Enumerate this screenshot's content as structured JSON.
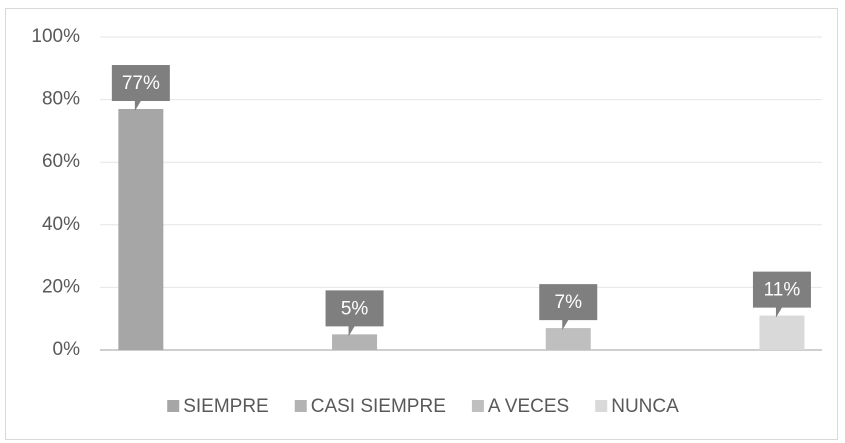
{
  "chart_data": {
    "type": "bar",
    "categories": [
      null
    ],
    "series": [
      {
        "name": "SIEMPRE",
        "color": "#a6a6a6",
        "values": [
          77
        ],
        "value_labels": [
          "77%"
        ]
      },
      {
        "name": "CASI SIEMPRE",
        "color": "#b3b3b3",
        "values": [
          5
        ],
        "value_labels": [
          "5%"
        ]
      },
      {
        "name": "A VECES",
        "color": "#bfbfbf",
        "values": [
          7
        ],
        "value_labels": [
          "7%"
        ]
      },
      {
        "name": "NUNCA",
        "color": "#d9d9d9",
        "values": [
          11
        ],
        "value_labels": [
          "11%"
        ]
      }
    ],
    "ylim": [
      0,
      100
    ],
    "yticks": [
      {
        "value": 0,
        "label": "0%"
      },
      {
        "value": 20,
        "label": "20%"
      },
      {
        "value": 40,
        "label": "40%"
      },
      {
        "value": 60,
        "label": "60%"
      },
      {
        "value": 80,
        "label": "80%"
      },
      {
        "value": 100,
        "label": "100%"
      }
    ],
    "grid": true,
    "label_color": "#7f7f7f",
    "legend": "bottom"
  }
}
